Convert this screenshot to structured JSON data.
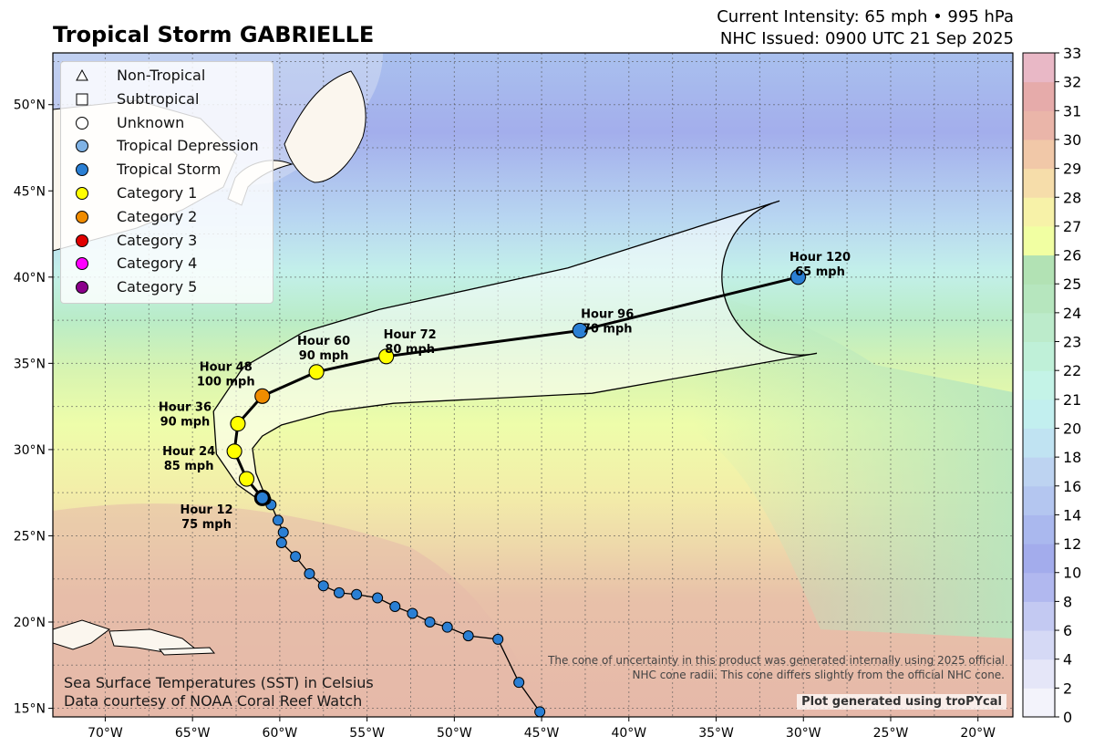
{
  "header": {
    "title": "Tropical Storm GABRIELLE",
    "intensity": "Current Intensity: 65 mph • 995 hPa",
    "issued": "NHC Issued: 0900 UTC 21 Sep 2025"
  },
  "map": {
    "lon_range": [
      -73,
      -18
    ],
    "lat_range": [
      14.5,
      53
    ],
    "lon_ticks": [
      "70°W",
      "65°W",
      "60°W",
      "55°W",
      "50°W",
      "45°W",
      "40°W",
      "35°W",
      "30°W",
      "25°W",
      "20°W"
    ],
    "lat_ticks": [
      "15°N",
      "20°N",
      "25°N",
      "30°N",
      "35°N",
      "40°N",
      "45°N",
      "50°N"
    ],
    "gridlines": true
  },
  "legend": {
    "placement": "top-left",
    "items": [
      {
        "label": "Non-Tropical",
        "symbol": "triangle",
        "color": "#ffffff"
      },
      {
        "label": "Subtropical",
        "symbol": "square",
        "color": "#ffffff"
      },
      {
        "label": "Unknown",
        "symbol": "circle",
        "color": "#ffffff"
      },
      {
        "label": "Tropical Depression",
        "symbol": "circle",
        "color": "#7fb2e5"
      },
      {
        "label": "Tropical Storm",
        "symbol": "circle",
        "color": "#2a7fd4"
      },
      {
        "label": "Category 1",
        "symbol": "circle",
        "color": "#ffff00"
      },
      {
        "label": "Category 2",
        "symbol": "circle",
        "color": "#f08c00"
      },
      {
        "label": "Category 3",
        "symbol": "circle",
        "color": "#e00000"
      },
      {
        "label": "Category 4",
        "symbol": "circle",
        "color": "#ff00ff"
      },
      {
        "label": "Category 5",
        "symbol": "circle",
        "color": "#8b008b"
      }
    ]
  },
  "chart_data": {
    "type": "scatter",
    "past_track": [
      {
        "lon": -45.1,
        "lat": 14.8
      },
      {
        "lon": -46.3,
        "lat": 16.5
      },
      {
        "lon": -47.5,
        "lat": 19.0
      },
      {
        "lon": -49.2,
        "lat": 19.2
      },
      {
        "lon": -50.4,
        "lat": 19.7
      },
      {
        "lon": -51.4,
        "lat": 20.0
      },
      {
        "lon": -52.4,
        "lat": 20.5
      },
      {
        "lon": -53.4,
        "lat": 20.9
      },
      {
        "lon": -54.4,
        "lat": 21.4
      },
      {
        "lon": -55.6,
        "lat": 21.6
      },
      {
        "lon": -56.6,
        "lat": 21.7
      },
      {
        "lon": -57.5,
        "lat": 22.1
      },
      {
        "lon": -58.3,
        "lat": 22.8
      },
      {
        "lon": -59.1,
        "lat": 23.8
      },
      {
        "lon": -59.9,
        "lat": 24.6
      },
      {
        "lon": -59.8,
        "lat": 25.2
      },
      {
        "lon": -60.1,
        "lat": 25.9
      },
      {
        "lon": -60.5,
        "lat": 26.8
      },
      {
        "lon": -60.8,
        "lat": 27.1
      }
    ],
    "past_category": "Tropical Storm",
    "current": {
      "lon": -61.0,
      "lat": 27.2
    },
    "forecast": [
      {
        "lon": -61.0,
        "lat": 27.2,
        "label": "",
        "category": "Tropical Storm"
      },
      {
        "lon": -61.9,
        "lat": 28.3,
        "label": "Hour 12\n75 mph",
        "category": "Category 1"
      },
      {
        "lon": -62.6,
        "lat": 29.9,
        "label": "Hour 24\n85 mph",
        "category": "Category 1"
      },
      {
        "lon": -62.4,
        "lat": 31.5,
        "label": "Hour 36\n90 mph",
        "category": "Category 1"
      },
      {
        "lon": -61.0,
        "lat": 33.1,
        "label": "Hour 48\n100 mph",
        "category": "Category 2"
      },
      {
        "lon": -57.9,
        "lat": 34.5,
        "label": "Hour 60\n90 mph",
        "category": "Category 1"
      },
      {
        "lon": -53.9,
        "lat": 35.4,
        "label": "Hour 72\n80 mph",
        "category": "Category 1"
      },
      {
        "lon": -42.8,
        "lat": 36.9,
        "label": "Hour 96\n70 mph",
        "category": "Tropical Storm"
      },
      {
        "lon": -30.3,
        "lat": 40.0,
        "label": "Hour 120\n65 mph",
        "category": "Tropical Storm"
      }
    ]
  },
  "colorbar": {
    "ticks": [
      "0",
      "2",
      "4",
      "6",
      "8",
      "10",
      "12",
      "14",
      "16",
      "18",
      "20",
      "21",
      "22",
      "23",
      "24",
      "25",
      "26",
      "27",
      "28",
      "29",
      "30",
      "31",
      "32",
      "33"
    ],
    "colors": [
      "#f3f3fb",
      "#e5e6f8",
      "#d5d9f5",
      "#c3c9f2",
      "#b1b8ef",
      "#a3acec",
      "#aab8ee",
      "#b4c6f0",
      "#bdd3f1",
      "#c0e3f2",
      "#c2efef",
      "#c4f3e7",
      "#bff0d8",
      "#bcebcb",
      "#b6e6be",
      "#b2e2b4",
      "#f1ffa2",
      "#f7f2a8",
      "#f6ddaa",
      "#f1c8a8",
      "#eab5a9",
      "#e6abaa",
      "#e9b8c6",
      "#f2d6ec"
    ]
  },
  "footer": {
    "sst_line1": "Sea Surface Temperatures (SST) in Celsius",
    "sst_line2": "Data courtesy of NOAA Coral Reef Watch",
    "cone_note_line1": "The cone of uncertainty in this product was generated internally using 2025 official",
    "cone_note_line2": "NHC cone radii. This cone differs slightly from the official NHC cone.",
    "credit": "Plot generated using troPYcal"
  }
}
